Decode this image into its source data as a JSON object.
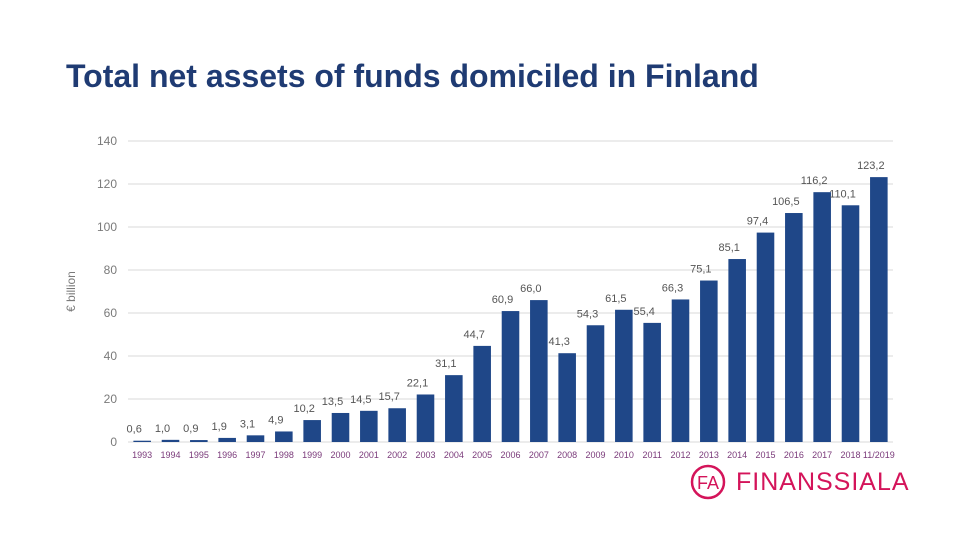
{
  "chart_data": {
    "type": "bar",
    "title": "Total net assets of funds domiciled in Finland",
    "ylabel": "€ billion",
    "xlabel": "",
    "ylim": [
      0,
      140
    ],
    "yticks": [
      0,
      20,
      40,
      60,
      80,
      100,
      120,
      140
    ],
    "grid": true,
    "legend": "none",
    "categories": [
      "1993",
      "1994",
      "1995",
      "1996",
      "1997",
      "1998",
      "1999",
      "2000",
      "2001",
      "2002",
      "2003",
      "2004",
      "2005",
      "2006",
      "2007",
      "2008",
      "2009",
      "2010",
      "2011",
      "2012",
      "2013",
      "2014",
      "2015",
      "2016",
      "2017",
      "2018",
      "11/2019"
    ],
    "values": [
      0.6,
      1.0,
      0.9,
      1.9,
      3.1,
      4.9,
      10.2,
      13.5,
      14.5,
      15.7,
      22.1,
      31.1,
      44.7,
      60.9,
      66.0,
      41.3,
      54.3,
      61.5,
      55.4,
      66.3,
      75.1,
      85.1,
      97.4,
      106.5,
      116.2,
      110.1,
      123.2
    ],
    "value_labels": [
      "0,6",
      "1,0",
      "0,9",
      "1,9",
      "3,1",
      "4,9",
      "10,2",
      "13,5",
      "14,5",
      "15,7",
      "22,1",
      "31,1",
      "44,7",
      "60,9",
      "66,0",
      "41,3",
      "54,3",
      "61,5",
      "55,4",
      "66,3",
      "75,1",
      "85,1",
      "97,4",
      "106,5",
      "116,2",
      "110,1",
      "123,2"
    ],
    "colors": {
      "bar": "#1f4788",
      "axis_text": "#7a7a7a",
      "tick_label": "#7a3a7a",
      "title": "#1f3b73",
      "gridline": "#d9d9d9"
    }
  },
  "logo": {
    "text": "FINANSSIALA",
    "mark_text": "FA",
    "color": "#d4145a"
  }
}
